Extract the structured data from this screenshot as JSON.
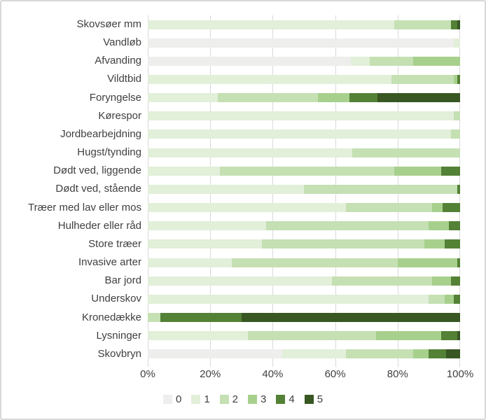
{
  "chart_data": {
    "type": "bar",
    "orientation": "horizontal-stacked",
    "title": "",
    "xlabel": "",
    "ylabel": "",
    "xlim": [
      0,
      100
    ],
    "grid": true,
    "legend_position": "bottom",
    "x_ticks": [
      {
        "label": "0%",
        "pct": 0
      },
      {
        "label": "20%",
        "pct": 20
      },
      {
        "label": "40%",
        "pct": 40
      },
      {
        "label": "60%",
        "pct": 60
      },
      {
        "label": "80%",
        "pct": 80
      },
      {
        "label": "100%",
        "pct": 100
      }
    ],
    "categories": [
      "Skovsøer mm",
      "Vandløb",
      "Afvanding",
      "Vildtbid",
      "Foryngelse",
      "Kørespor",
      "Jordbearbejdning",
      "Hugst/tynding",
      "Dødt ved, liggende",
      "Dødt ved, stående",
      "Træer med lav eller mos",
      "Hulheder eller råd",
      "Store træer",
      "Invasive arter",
      "Bar jord",
      "Underskov",
      "Kronedække",
      "Lysninger",
      "Skovbryn"
    ],
    "series": [
      {
        "name": "0",
        "color": "#eeeeec",
        "values": [
          0,
          98,
          65,
          0,
          0,
          0,
          0,
          0,
          0,
          0,
          0,
          0,
          0,
          0,
          0,
          0,
          0,
          0,
          43
        ]
      },
      {
        "name": "1",
        "color": "#e2efd9",
        "values": [
          79,
          2,
          6,
          78,
          22.5,
          98,
          97,
          65.5,
          23,
          50,
          63.5,
          38,
          36.5,
          27,
          59,
          90,
          0,
          32,
          20.5
        ]
      },
      {
        "name": "2",
        "color": "#c5e0b3",
        "values": [
          18,
          0,
          14,
          20,
          32,
          2,
          3,
          34.5,
          56,
          49,
          27.5,
          52,
          52,
          53,
          32,
          5,
          4,
          41,
          21.5
        ]
      },
      {
        "name": "3",
        "color": "#a8d08d",
        "values": [
          0,
          0,
          15,
          1,
          10,
          0,
          0,
          0,
          15,
          0,
          3.5,
          6.5,
          6.5,
          19,
          6,
          3,
          0,
          21,
          5
        ]
      },
      {
        "name": "4",
        "color": "#538135",
        "values": [
          2,
          0,
          0,
          1,
          9,
          0,
          0,
          0,
          6,
          1,
          5.5,
          3.5,
          5,
          1,
          3,
          2,
          26,
          5,
          5.5
        ]
      },
      {
        "name": "5",
        "color": "#385723",
        "values": [
          1,
          0,
          0,
          0,
          26.5,
          0,
          0,
          0,
          0,
          0,
          0,
          0,
          0,
          0,
          0,
          0,
          70,
          1,
          4.5
        ]
      }
    ],
    "colors": {
      "gridline": "#d9d9d9",
      "text": "#3f3f3f",
      "background": "#ffffff",
      "border": "#d8d8d8"
    }
  }
}
